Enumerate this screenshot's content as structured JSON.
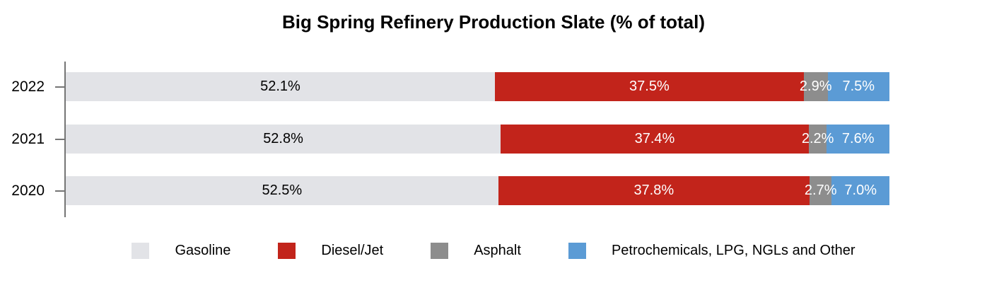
{
  "title": "Big Spring Refinery Production Slate (% of total)",
  "chart_data": {
    "type": "bar",
    "orientation": "horizontal",
    "stacked": true,
    "title": "Big Spring Refinery Production Slate (% of total)",
    "categories": [
      "2022",
      "2021",
      "2020"
    ],
    "series": [
      {
        "name": "Gasoline",
        "color": "#E2E3E7",
        "label_color": "#000000",
        "values": [
          52.1,
          52.8,
          52.5
        ]
      },
      {
        "name": "Diesel/Jet",
        "color": "#C2241B",
        "label_color": "#FFFFFF",
        "values": [
          37.5,
          37.4,
          37.8
        ]
      },
      {
        "name": "Asphalt",
        "color": "#8D8D8D",
        "label_color": "#FFFFFF",
        "values": [
          2.9,
          2.2,
          2.7
        ]
      },
      {
        "name": "Petrochemicals, LPG, NGLs and Other",
        "color": "#5B9BD5",
        "label_color": "#FFFFFF",
        "values": [
          7.5,
          7.6,
          7.0
        ]
      }
    ],
    "value_suffix": "%",
    "value_decimals": 1,
    "xlim": [
      0,
      100
    ],
    "grid": false,
    "legend_position": "bottom",
    "axis_color": "#757575"
  }
}
